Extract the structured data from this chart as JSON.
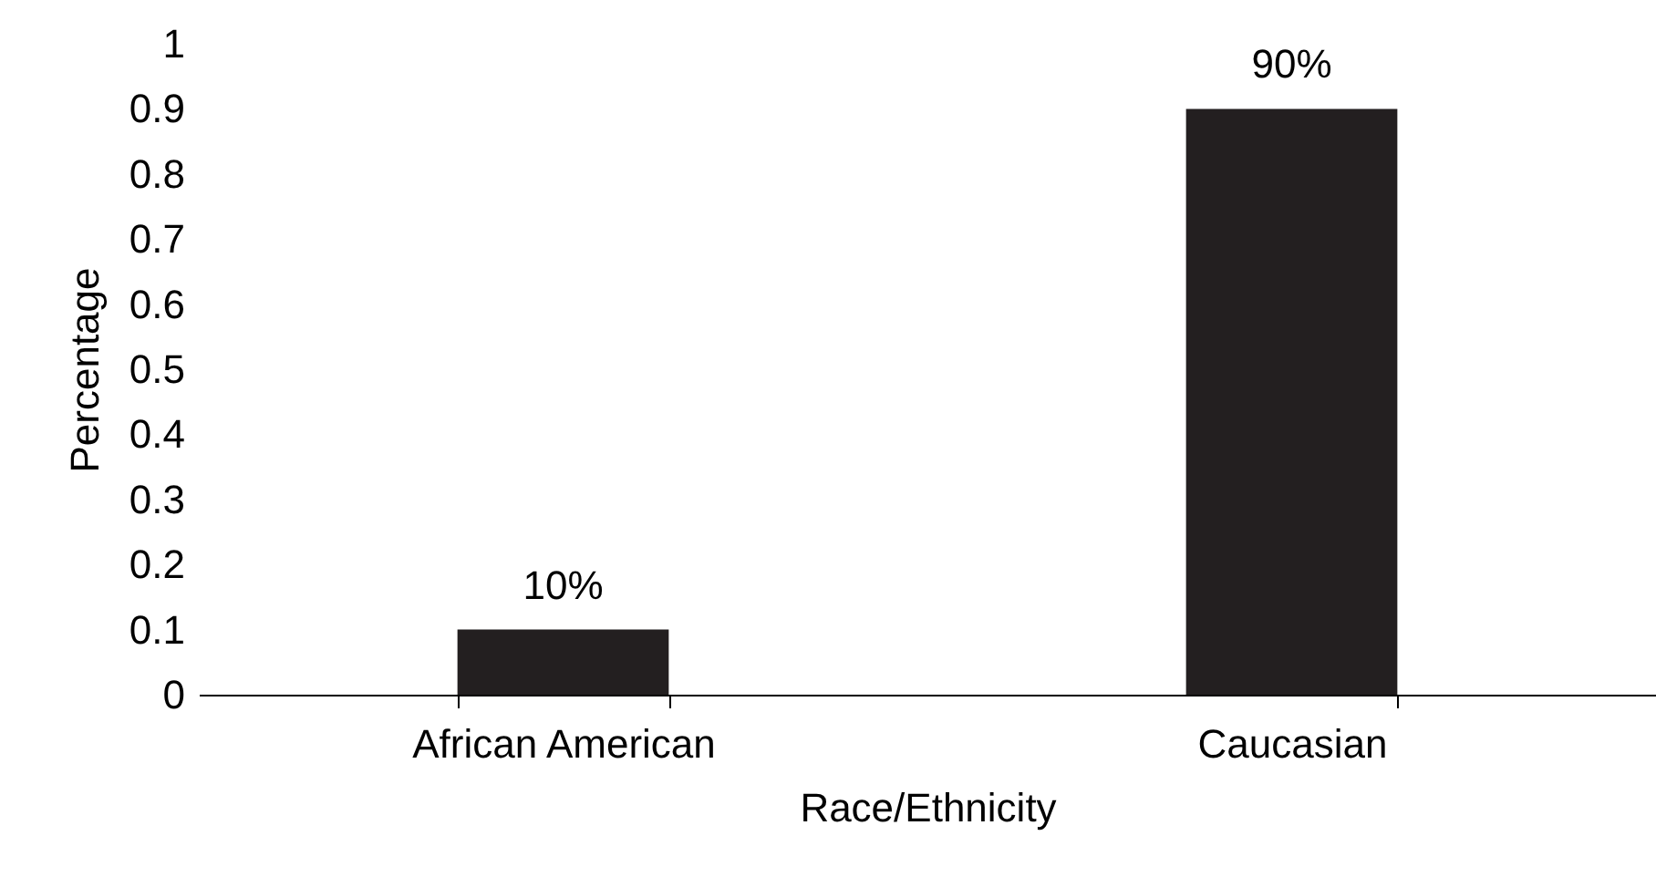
{
  "chart_data": {
    "type": "bar",
    "xlabel": "Race/Ethnicity",
    "ylabel": "Percentage",
    "categories": [
      "African American",
      "Caucasian"
    ],
    "values": [
      0.1,
      0.9
    ],
    "value_labels": [
      "10%",
      "90%"
    ],
    "color": "#231f20",
    "ylim": [
      0,
      1
    ],
    "yticks": [
      {
        "value": 0,
        "label": "0"
      },
      0.1,
      0.2,
      0.3,
      0.4,
      0.5,
      0.6,
      0.7,
      0.8,
      0.9,
      {
        "value": 1,
        "label": "1"
      }
    ],
    "grid": false
  }
}
